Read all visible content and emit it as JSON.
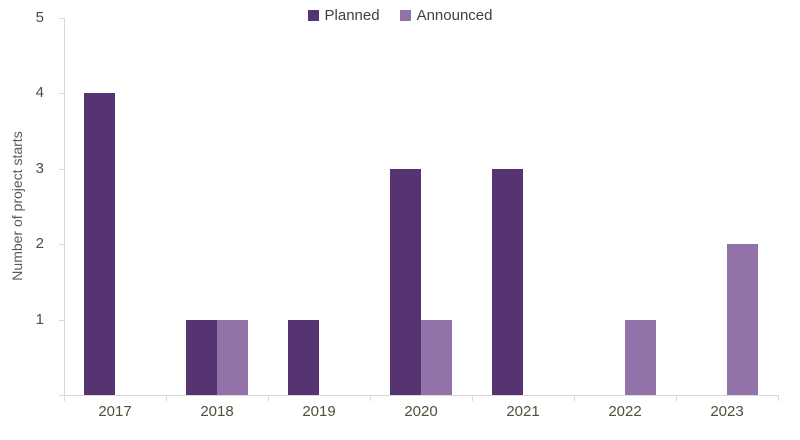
{
  "chart_data": {
    "type": "bar",
    "title": "",
    "categories": [
      "2017",
      "2018",
      "2019",
      "2020",
      "2021",
      "2022",
      "2023"
    ],
    "series": [
      {
        "name": "Planned",
        "color": "#563471",
        "values": [
          4,
          1,
          1,
          3,
          3,
          0,
          0
        ]
      },
      {
        "name": "Announced",
        "color": "#9173A9",
        "values": [
          0,
          1,
          0,
          1,
          0,
          1,
          2
        ]
      }
    ],
    "xlabel": "",
    "ylabel": "Number of project starts",
    "ylim": [
      0,
      5
    ],
    "yticks": [
      1,
      2,
      3,
      4,
      5
    ],
    "grid": false,
    "legend_position": "top-center"
  },
  "colors": {
    "background": "#ffffff",
    "axis_line": "#d9d9d9",
    "tick_label_text": "#514e3c",
    "axis_title_text": "#595959",
    "legend_text": "#404040"
  }
}
